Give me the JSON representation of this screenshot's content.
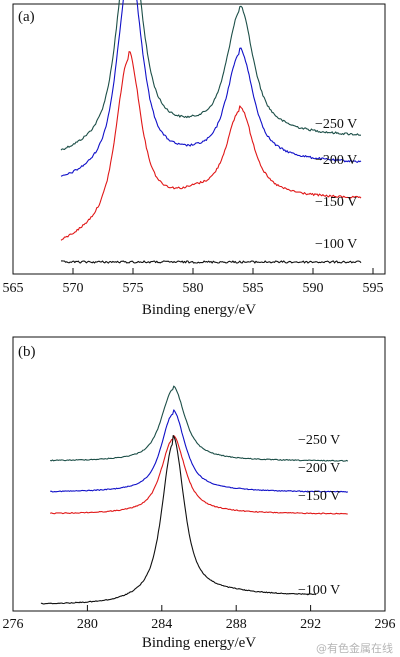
{
  "chart_data": [
    {
      "type": "line",
      "panel_label": "(a)",
      "xlabel": "Binding energy/eV",
      "ylabel": "",
      "xlim": [
        565,
        596
      ],
      "xticks": [
        565,
        570,
        575,
        580,
        585,
        590,
        595
      ],
      "tick_labels": [
        "565",
        "570",
        "575",
        "580",
        "585",
        "590",
        "595"
      ],
      "grid": false,
      "y_units": "arbitrary (offset per series)",
      "series": [
        {
          "name": "−250 V",
          "color": "#1d4f48",
          "x_range": [
            569,
            594
          ],
          "baseline": 0.7,
          "tail": 0.84,
          "peaks": [
            {
              "center": 574.7,
              "height": 1.43,
              "width": 1.3
            },
            {
              "center": 583.9,
              "height": 0.82,
              "width": 1.4
            }
          ]
        },
        {
          "name": "−200 V",
          "color": "#1111c8",
          "x_range": [
            569,
            594
          ],
          "baseline": 0.52,
          "tail": 0.66,
          "peaks": [
            {
              "center": 574.7,
              "height": 1.35,
              "width": 1.3
            },
            {
              "center": 583.9,
              "height": 0.72,
              "width": 1.4
            }
          ]
        },
        {
          "name": "−150 V",
          "color": "#e01818",
          "x_range": [
            569,
            594
          ],
          "baseline": 0.1,
          "tail": 0.42,
          "peaks": [
            {
              "center": 574.6,
              "height": 1.1,
              "width": 1.3
            },
            {
              "center": 583.9,
              "height": 0.58,
              "width": 1.4
            }
          ]
        },
        {
          "name": "−100 V",
          "color": "#111111",
          "x_range": [
            569,
            594
          ],
          "baseline": 0.0,
          "tail": 0.0,
          "peaks": []
        }
      ]
    },
    {
      "type": "line",
      "panel_label": "(b)",
      "xlabel": "Binding energy/eV",
      "ylabel": "",
      "xlim": [
        276,
        296
      ],
      "xticks": [
        276,
        280,
        284,
        288,
        292,
        296
      ],
      "tick_labels": [
        "276",
        "280",
        "284",
        "288",
        "292",
        "296"
      ],
      "grid": false,
      "y_units": "arbitrary (offset per series)",
      "series": [
        {
          "name": "−250 V",
          "color": "#1d4f48",
          "x_range": [
            278,
            294
          ],
          "baseline": 1.25,
          "tail": 1.25,
          "peaks": [
            {
              "center": 284.6,
              "height": 0.62,
              "width": 0.8
            }
          ]
        },
        {
          "name": "−200 V",
          "color": "#1111c8",
          "x_range": [
            278,
            294
          ],
          "baseline": 0.98,
          "tail": 0.98,
          "peaks": [
            {
              "center": 284.6,
              "height": 0.68,
              "width": 0.8
            }
          ]
        },
        {
          "name": "−150 V",
          "color": "#e01818",
          "x_range": [
            278,
            294
          ],
          "baseline": 0.79,
          "tail": 0.79,
          "peaks": [
            {
              "center": 284.6,
              "height": 0.65,
              "width": 0.8
            }
          ]
        },
        {
          "name": "−100 V",
          "color": "#111111",
          "x_range": [
            277.5,
            292.3
          ],
          "baseline": 0.0,
          "tail": 0.08,
          "peaks": [
            {
              "center": 284.6,
              "height": 1.36,
              "width": 0.75
            }
          ]
        }
      ]
    }
  ],
  "watermark": "@有色金属在线"
}
